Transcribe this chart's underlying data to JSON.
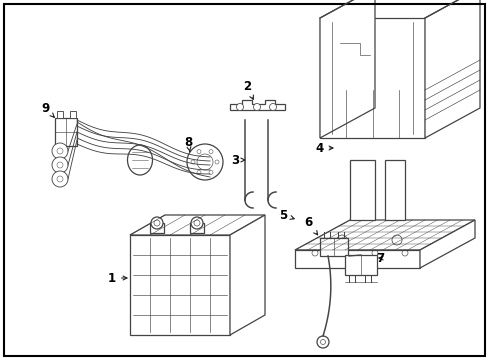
{
  "background_color": "#ffffff",
  "border_color": "#000000",
  "line_color": "#444444",
  "label_color": "#000000",
  "lw": 0.9
}
